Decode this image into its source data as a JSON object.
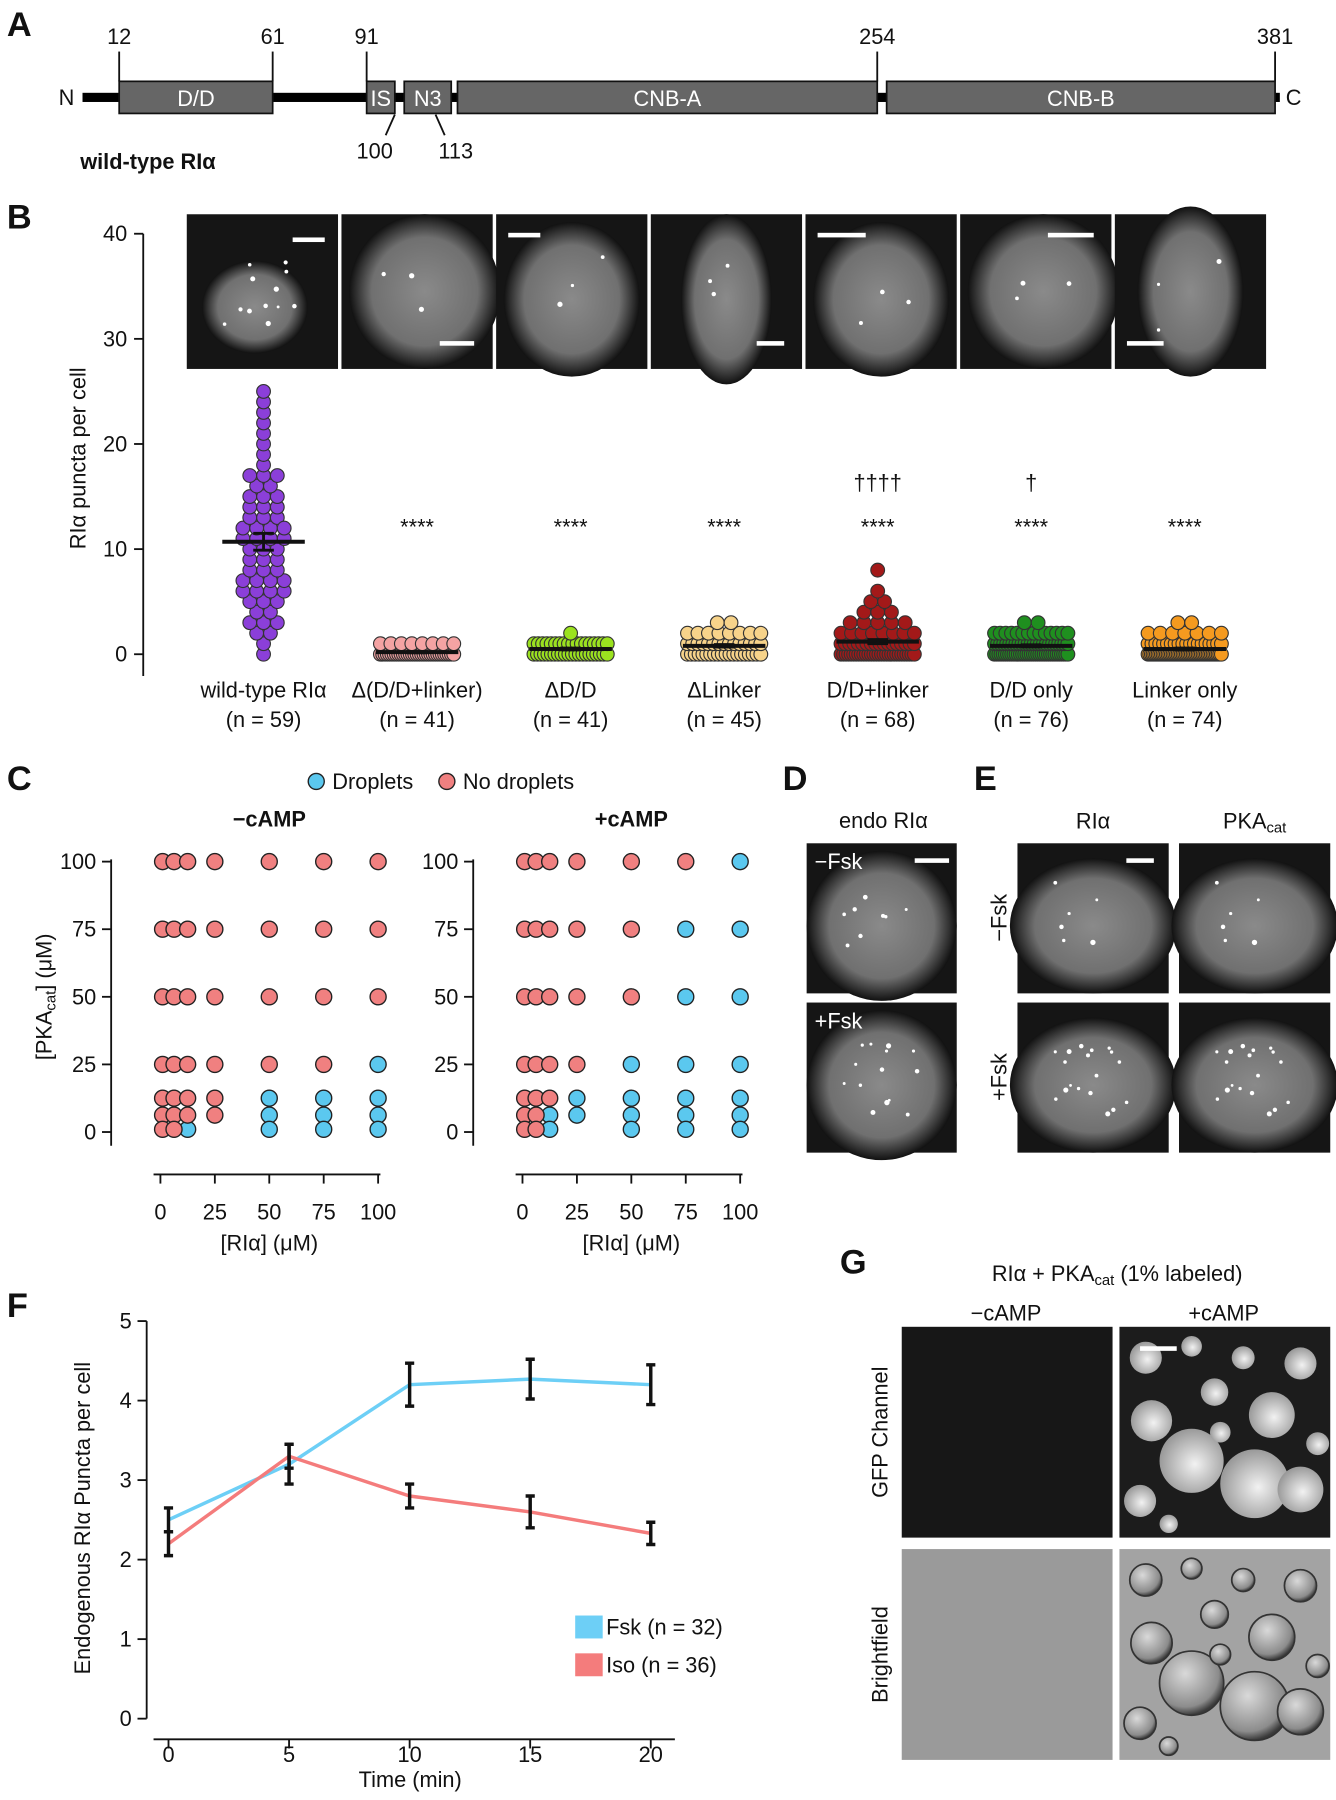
{
  "panel_labels": [
    "A",
    "B",
    "C",
    "D",
    "E",
    "F",
    "G"
  ],
  "domain_diagram": {
    "label": "wild-type RIα",
    "n_term": "N",
    "c_term": "C",
    "domains": [
      {
        "name": "D/D",
        "start": 12,
        "end": 61
      },
      {
        "name": "IS",
        "start": 91,
        "end": 100
      },
      {
        "name": "N3",
        "start": 103,
        "end": 118
      },
      {
        "name": "CNB-A",
        "start": 120,
        "end": 254
      },
      {
        "name": "CNB-B",
        "start": 257,
        "end": 381
      }
    ],
    "positions_top": [
      12,
      61,
      91,
      254,
      381
    ],
    "positions_bottom": [
      100,
      113
    ]
  },
  "chart_data": [
    {
      "type": "dotplot",
      "ylabel": "RIα puncta per cell",
      "ylim": [
        0,
        40
      ],
      "yticks": [
        0,
        10,
        20,
        30,
        40
      ],
      "categories": [
        "wild-type RIα",
        "Δ(D/D+linker)",
        "ΔD/D",
        "ΔLinker",
        "D/D+linker",
        "D/D only",
        "Linker only"
      ],
      "category_notes": [
        "(n = 59)",
        "(n = 41)",
        "(n = 41)",
        "(n = 45)",
        "(n = 68)",
        "(n = 76)",
        "(n = 74)"
      ],
      "colors": [
        "#8b3fd9",
        "#f4a3a3",
        "#9be21f",
        "#f7d38a",
        "#a31919",
        "#1f8f1f",
        "#f59a1f"
      ],
      "means": [
        10.7,
        0.2,
        0.5,
        0.8,
        1.2,
        0.8,
        0.5
      ],
      "sem": [
        0.8,
        0.06,
        0.09,
        0.12,
        0.2,
        0.1,
        0.09
      ],
      "significance": [
        null,
        "****",
        "****",
        "****",
        "****",
        "****",
        "****"
      ],
      "daggers": [
        null,
        null,
        null,
        null,
        "††††",
        "†",
        null
      ],
      "points": [
        [
          0,
          1,
          2,
          2,
          3,
          3,
          3,
          4,
          4,
          5,
          5,
          5,
          6,
          6,
          6,
          6,
          7,
          7,
          7,
          7,
          8,
          8,
          8,
          9,
          9,
          9,
          10,
          10,
          10,
          11,
          11,
          11,
          11,
          12,
          12,
          12,
          13,
          13,
          13,
          14,
          14,
          14,
          15,
          15,
          15,
          16,
          16,
          17,
          17,
          17,
          18,
          19,
          20,
          21,
          22,
          23,
          24,
          25,
          12
        ],
        [
          0,
          0,
          0,
          0,
          0,
          0,
          0,
          0,
          0,
          0,
          0,
          0,
          0,
          0,
          0,
          0,
          0,
          0,
          0,
          0,
          0,
          0,
          0,
          0,
          0,
          0,
          0,
          0,
          0,
          0,
          0,
          0,
          0,
          1,
          1,
          1,
          1,
          1,
          1,
          1,
          1
        ],
        [
          0,
          0,
          0,
          0,
          0,
          0,
          0,
          0,
          0,
          0,
          0,
          0,
          0,
          0,
          0,
          0,
          0,
          0,
          0,
          0,
          0,
          0,
          1,
          1,
          1,
          1,
          1,
          1,
          1,
          1,
          1,
          1,
          1,
          1,
          1,
          1,
          1,
          1,
          1,
          1,
          2
        ],
        [
          0,
          0,
          0,
          0,
          0,
          0,
          0,
          0,
          0,
          0,
          0,
          0,
          0,
          0,
          0,
          0,
          0,
          0,
          0,
          0,
          1,
          1,
          1,
          1,
          1,
          1,
          1,
          1,
          1,
          1,
          1,
          1,
          1,
          1,
          1,
          2,
          2,
          2,
          2,
          2,
          2,
          2,
          2,
          3,
          3
        ],
        [
          0,
          0,
          0,
          0,
          0,
          0,
          0,
          0,
          0,
          0,
          0,
          0,
          0,
          0,
          0,
          0,
          0,
          0,
          0,
          0,
          0,
          0,
          0,
          0,
          0,
          0,
          0,
          0,
          0,
          0,
          1,
          1,
          1,
          1,
          1,
          1,
          1,
          1,
          1,
          1,
          1,
          1,
          1,
          1,
          1,
          1,
          1,
          1,
          2,
          2,
          2,
          2,
          2,
          2,
          2,
          2,
          3,
          3,
          3,
          3,
          3,
          4,
          4,
          4,
          5,
          5,
          6,
          8
        ],
        [
          0,
          0,
          0,
          0,
          0,
          0,
          0,
          0,
          0,
          0,
          0,
          0,
          0,
          0,
          0,
          0,
          0,
          0,
          0,
          0,
          0,
          0,
          0,
          0,
          0,
          0,
          0,
          0,
          0,
          0,
          0,
          0,
          0,
          0,
          0,
          1,
          1,
          1,
          1,
          1,
          1,
          1,
          1,
          1,
          1,
          1,
          1,
          1,
          1,
          1,
          1,
          1,
          1,
          1,
          1,
          1,
          1,
          1,
          1,
          1,
          2,
          2,
          2,
          2,
          2,
          2,
          2,
          2,
          2,
          2,
          2,
          2,
          2,
          2,
          3,
          3
        ],
        [
          0,
          0,
          0,
          0,
          0,
          0,
          0,
          0,
          0,
          0,
          0,
          0,
          0,
          0,
          0,
          0,
          0,
          0,
          0,
          0,
          0,
          0,
          0,
          0,
          0,
          0,
          0,
          0,
          0,
          0,
          0,
          0,
          0,
          0,
          0,
          0,
          0,
          0,
          0,
          0,
          0,
          0,
          0,
          0,
          0,
          1,
          1,
          1,
          1,
          1,
          1,
          1,
          1,
          1,
          1,
          1,
          1,
          1,
          1,
          1,
          1,
          1,
          1,
          1,
          1,
          2,
          2,
          2,
          2,
          2,
          2,
          2,
          3,
          3
        ]
      ]
    },
    {
      "type": "scatter",
      "title": "−cAMP",
      "xlabel": "[RIα] (μM)",
      "ylabel": {
        "text": "[PKA",
        "sub": "cat",
        "tail": "] (μM)"
      },
      "xlim": [
        0,
        100
      ],
      "ylim": [
        0,
        100
      ],
      "xticks": [
        0,
        25,
        50,
        75,
        100
      ],
      "yticks": [
        0,
        25,
        50,
        75,
        100
      ],
      "series": [
        {
          "name": "Droplets",
          "color": "#5bc8ef",
          "x": [
            100,
            50,
            75,
            100,
            50,
            75,
            100,
            12.5,
            50,
            75,
            100
          ],
          "values": [
            25,
            12.5,
            12.5,
            12.5,
            6.25,
            6.25,
            6.25,
            1,
            1,
            1,
            1
          ]
        },
        {
          "name": "No droplets",
          "color": "#f08080",
          "x": [
            1,
            6.25,
            12.5,
            25,
            50,
            75,
            100,
            1,
            6.25,
            12.5,
            25,
            50,
            75,
            100,
            1,
            6.25,
            12.5,
            25,
            50,
            75,
            100,
            1,
            6.25,
            12.5,
            25,
            50,
            75,
            1,
            6.25,
            12.5,
            25,
            1,
            6.25,
            12.5,
            25,
            1,
            6.25
          ],
          "values": [
            100,
            100,
            100,
            100,
            100,
            100,
            100,
            75,
            75,
            75,
            75,
            75,
            75,
            75,
            50,
            50,
            50,
            50,
            50,
            50,
            50,
            25,
            25,
            25,
            25,
            25,
            25,
            12.5,
            12.5,
            12.5,
            12.5,
            6.25,
            6.25,
            6.25,
            6.25,
            1,
            1
          ]
        }
      ]
    },
    {
      "type": "scatter",
      "title": "+cAMP",
      "xlabel": "[RIα] (μM)",
      "xlim": [
        0,
        100
      ],
      "ylim": [
        0,
        100
      ],
      "xticks": [
        0,
        25,
        50,
        75,
        100
      ],
      "yticks": [
        0,
        25,
        50,
        75,
        100
      ],
      "series": [
        {
          "color": "#5bc8ef",
          "x": [
            100,
            75,
            100,
            75,
            100,
            50,
            75,
            100,
            25,
            50,
            75,
            100,
            12.5,
            25,
            50,
            75,
            100,
            12.5,
            50,
            75,
            100
          ],
          "values": [
            100,
            75,
            75,
            50,
            50,
            25,
            25,
            25,
            12.5,
            12.5,
            12.5,
            12.5,
            6.25,
            6.25,
            6.25,
            6.25,
            6.25,
            1,
            1,
            1,
            1
          ]
        },
        {
          "color": "#f08080",
          "x": [
            1,
            6.25,
            12.5,
            25,
            50,
            75,
            1,
            6.25,
            12.5,
            25,
            50,
            1,
            6.25,
            12.5,
            25,
            50,
            1,
            6.25,
            12.5,
            25,
            1,
            6.25,
            12.5,
            1,
            6.25,
            1,
            6.25
          ],
          "values": [
            100,
            100,
            100,
            100,
            100,
            100,
            75,
            75,
            75,
            75,
            75,
            50,
            50,
            50,
            50,
            50,
            25,
            25,
            25,
            25,
            12.5,
            12.5,
            12.5,
            6.25,
            6.25,
            1,
            1
          ]
        }
      ]
    },
    {
      "type": "line",
      "xlabel": "Time (min)",
      "ylabel": "Endogenous RIα Puncta per cell",
      "x": [
        0,
        5,
        10,
        15,
        20
      ],
      "xlim": [
        -1,
        21
      ],
      "xticks": [
        0,
        5,
        10,
        15,
        20
      ],
      "ylim": [
        0,
        5
      ],
      "yticks": [
        0,
        1,
        2,
        3,
        4,
        5
      ],
      "series": [
        {
          "name": "Fsk (n = 32)",
          "color": "#6dcff6",
          "values": [
            2.5,
            3.2,
            4.2,
            4.27,
            4.2
          ],
          "errors": [
            0.15,
            0.25,
            0.27,
            0.25,
            0.25
          ]
        },
        {
          "name": "Iso (n = 36)",
          "color": "#f47c7c",
          "values": [
            2.2,
            3.3,
            2.8,
            2.6,
            2.33
          ],
          "errors": [
            0.15,
            0.15,
            0.15,
            0.2,
            0.14
          ]
        }
      ]
    }
  ],
  "micrographs": {
    "D": {
      "title": "endo RIα",
      "rows": [
        "−Fsk",
        "+Fsk"
      ]
    },
    "E": {
      "columns": [
        {
          "text": "RIα"
        },
        {
          "text": "PKA",
          "sub": "cat"
        }
      ],
      "rows": [
        "−Fsk",
        "+Fsk"
      ]
    },
    "G": {
      "title": {
        "text": "RIα + PKA",
        "sub": "cat",
        "tail": " (1% labeled)"
      },
      "columns": [
        "−cAMP",
        "+cAMP"
      ],
      "rows": [
        "GFP Channel",
        "Brightfield"
      ]
    }
  }
}
